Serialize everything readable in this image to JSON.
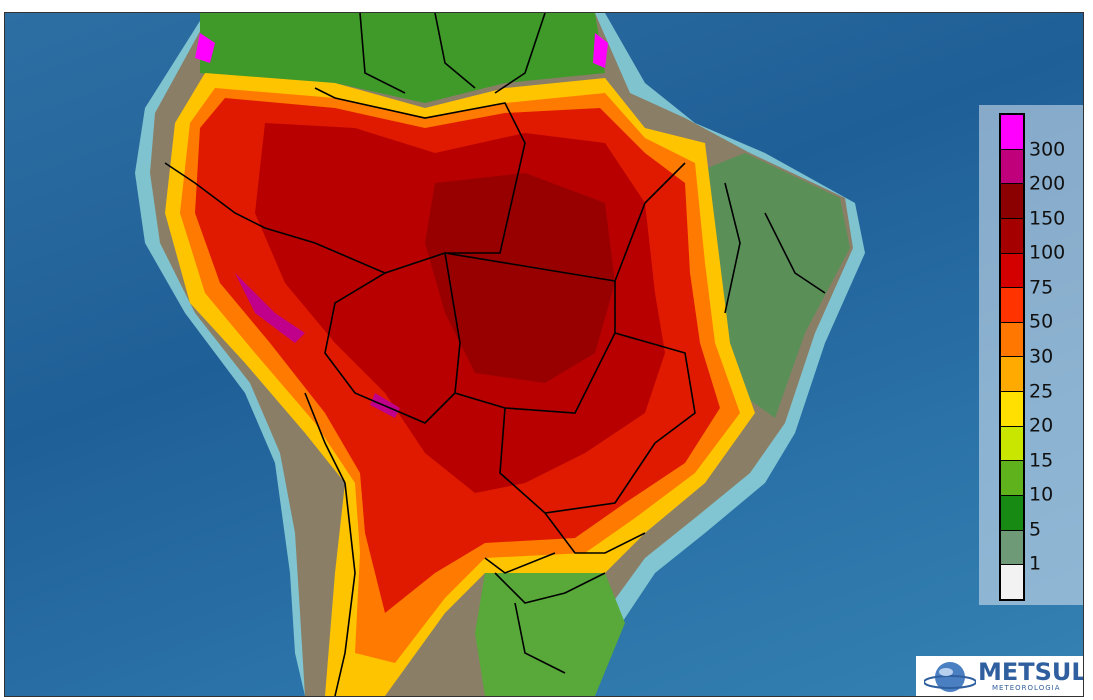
{
  "legend": {
    "labels": [
      "300",
      "200",
      "150",
      "100",
      "75",
      "50",
      "30",
      "25",
      "20",
      "15",
      "10",
      "5",
      "1"
    ],
    "colors": [
      "#ff00ff",
      "#c0007a",
      "#8b0000",
      "#a50000",
      "#d40000",
      "#ff3300",
      "#ff7700",
      "#ffaa00",
      "#ffe000",
      "#c8e600",
      "#5fb21c",
      "#178a14",
      "#6f9a78",
      "#f2f2f2"
    ]
  },
  "logo": {
    "name": "METSUL",
    "subtitle": "METEOROLOGIA"
  }
}
